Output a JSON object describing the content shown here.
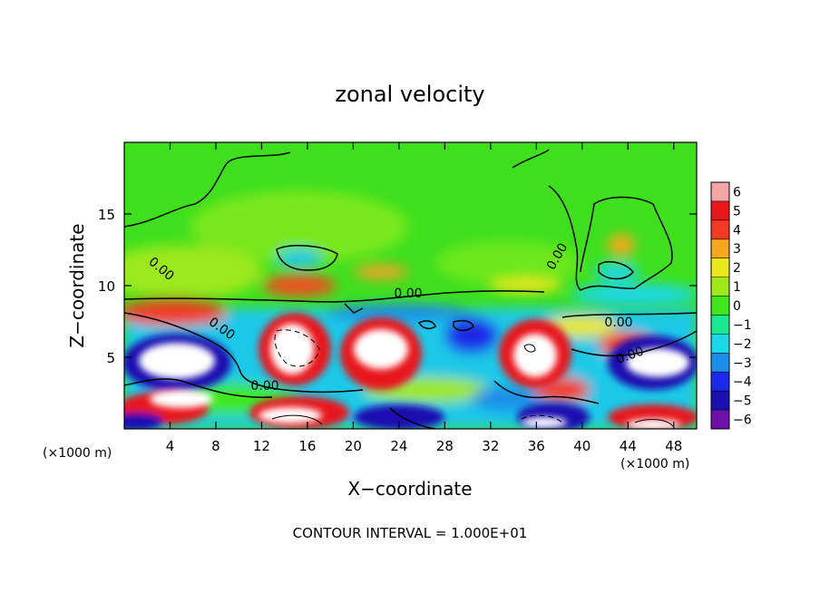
{
  "chart_data": {
    "type": "heatmap",
    "title": "zonal velocity",
    "xlabel": "X−coordinate",
    "ylabel": "Z−coordinate",
    "x_unit_left": "(×1000 m)",
    "x_unit_right": "(×1000 m)",
    "xlim": [
      0,
      50
    ],
    "ylim": [
      0,
      20
    ],
    "x_ticks": [
      4,
      8,
      12,
      16,
      20,
      24,
      28,
      32,
      36,
      40,
      44,
      48
    ],
    "y_ticks": [
      5,
      10,
      15
    ],
    "colorbar": {
      "levels": [
        6,
        5,
        4,
        3,
        2,
        1,
        0,
        -1,
        -2,
        -3,
        -4,
        -5,
        -6
      ],
      "colors": [
        "#f4a6a6",
        "#e8181a",
        "#f23b22",
        "#f6a81c",
        "#e8e81a",
        "#9fe81a",
        "#3fe81a",
        "#1ae88e",
        "#1ad8e8",
        "#1a8ee8",
        "#1a2ae8",
        "#1a10b0",
        "#6a10a8"
      ]
    },
    "contour_label": "0.00",
    "contour_interval_text": "CONTOUR INTERVAL = 1.000E+01"
  }
}
